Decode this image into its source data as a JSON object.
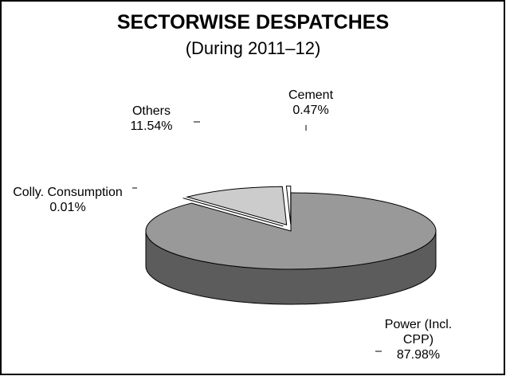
{
  "chart_data": {
    "type": "pie3d",
    "title": "SECTORWISE DESPATCHES",
    "subtitle": "(During 2011–12)",
    "categories": [
      "Power (Incl. CPP)",
      "Colly. Consumption",
      "Others",
      "Cement"
    ],
    "values": [
      87.98,
      0.01,
      11.54,
      0.47
    ],
    "value_labels": [
      "87.98%",
      "0.01%",
      "11.54%",
      "0.47%"
    ],
    "colors": [
      "#999999",
      "#000000",
      "#cccccc",
      "#ffffff"
    ]
  }
}
